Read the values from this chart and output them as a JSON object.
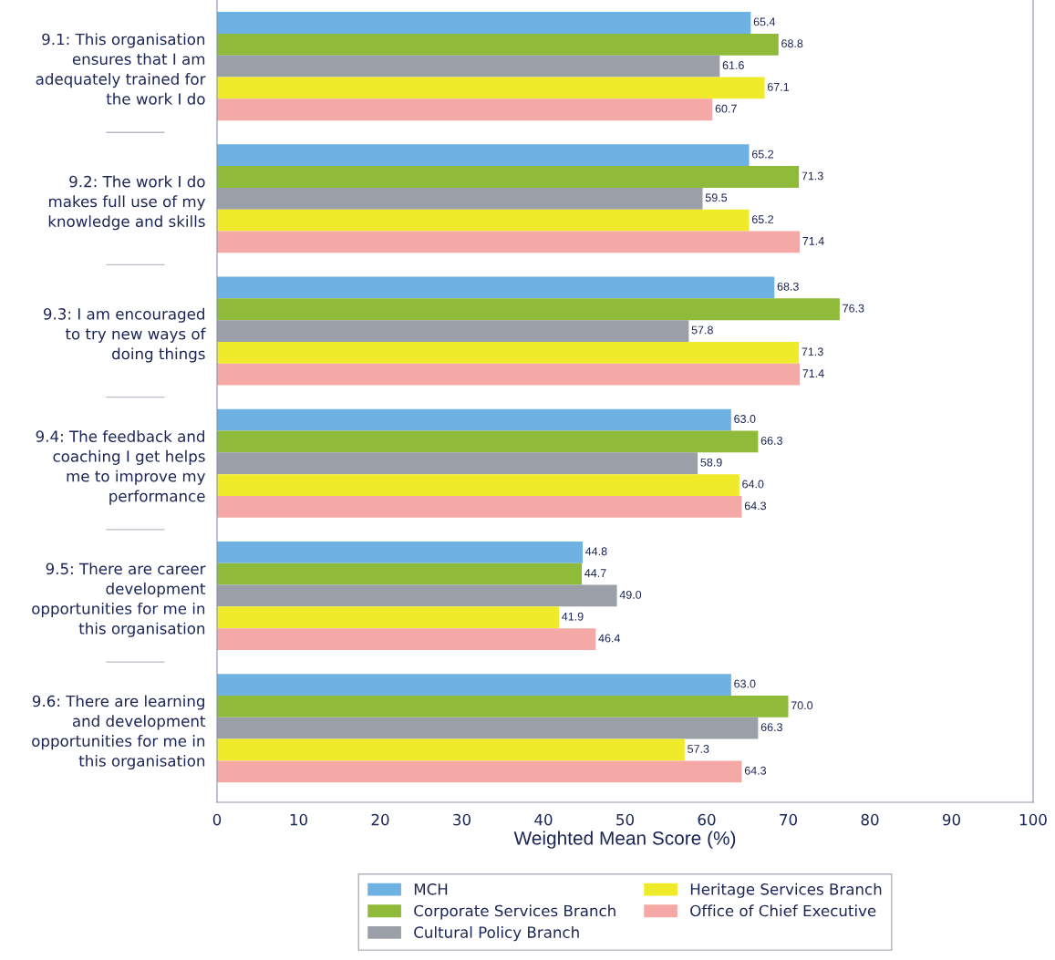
{
  "chart_data": {
    "type": "bar",
    "orientation": "horizontal",
    "categories": [
      "9.1: This organisation\nensures that I am\nadequately trained for\nthe work I do",
      "9.2: The work I do\nmakes full use of my\nknowledge and skills",
      "9.3: I am encouraged\nto try new ways of\ndoing things",
      "9.4: The feedback and\ncoaching I get helps\nme to improve my\nperformance",
      "9.5: There are career\ndevelopment\nopportunities for me in\nthis organisation",
      "9.6: There are learning\nand development\nopportunities for me in\nthis organisation"
    ],
    "series": [
      {
        "name": "MCH",
        "color": "#6eb1e3",
        "values": [
          65.4,
          65.2,
          68.3,
          63.0,
          44.8,
          63.0
        ],
        "value_labels": [
          "65.4",
          "65.2",
          "68.3",
          "63.0",
          "44.8",
          "63.0"
        ]
      },
      {
        "name": "Corporate Services Branch",
        "color": "#8fba3a",
        "values": [
          68.8,
          71.3,
          76.3,
          66.3,
          44.7,
          70.0
        ],
        "value_labels": [
          "68.8",
          "71.3",
          "76.3",
          "66.3",
          "44.7",
          "70.0"
        ]
      },
      {
        "name": "Cultural Policy Branch",
        "color": "#9b9fa8",
        "values": [
          61.6,
          59.5,
          57.8,
          58.9,
          49.0,
          66.3
        ],
        "value_labels": [
          "61.6",
          "59.5",
          "57.8",
          "58.9",
          "49.0",
          "66.3"
        ]
      },
      {
        "name": "Heritage Services Branch",
        "color": "#efeb2a",
        "values": [
          67.1,
          65.2,
          71.3,
          64.0,
          41.9,
          57.3
        ],
        "value_labels": [
          "67.1",
          "65.2",
          "71.3",
          "64.0",
          "41.9",
          "57.3"
        ]
      },
      {
        "name": "Office of Chief Executive",
        "color": "#f4a9a6",
        "values": [
          60.7,
          71.4,
          71.4,
          64.3,
          46.4,
          64.3
        ],
        "value_labels": [
          "60.7",
          "71.4",
          "71.4",
          "64.3",
          "46.4",
          "64.3"
        ]
      }
    ],
    "xlim": [
      0,
      100
    ],
    "xticks": [
      0,
      10,
      20,
      30,
      40,
      50,
      60,
      70,
      80,
      90,
      100
    ],
    "xlabel": "Weighted Mean Score (%)",
    "legend": "bottom"
  }
}
